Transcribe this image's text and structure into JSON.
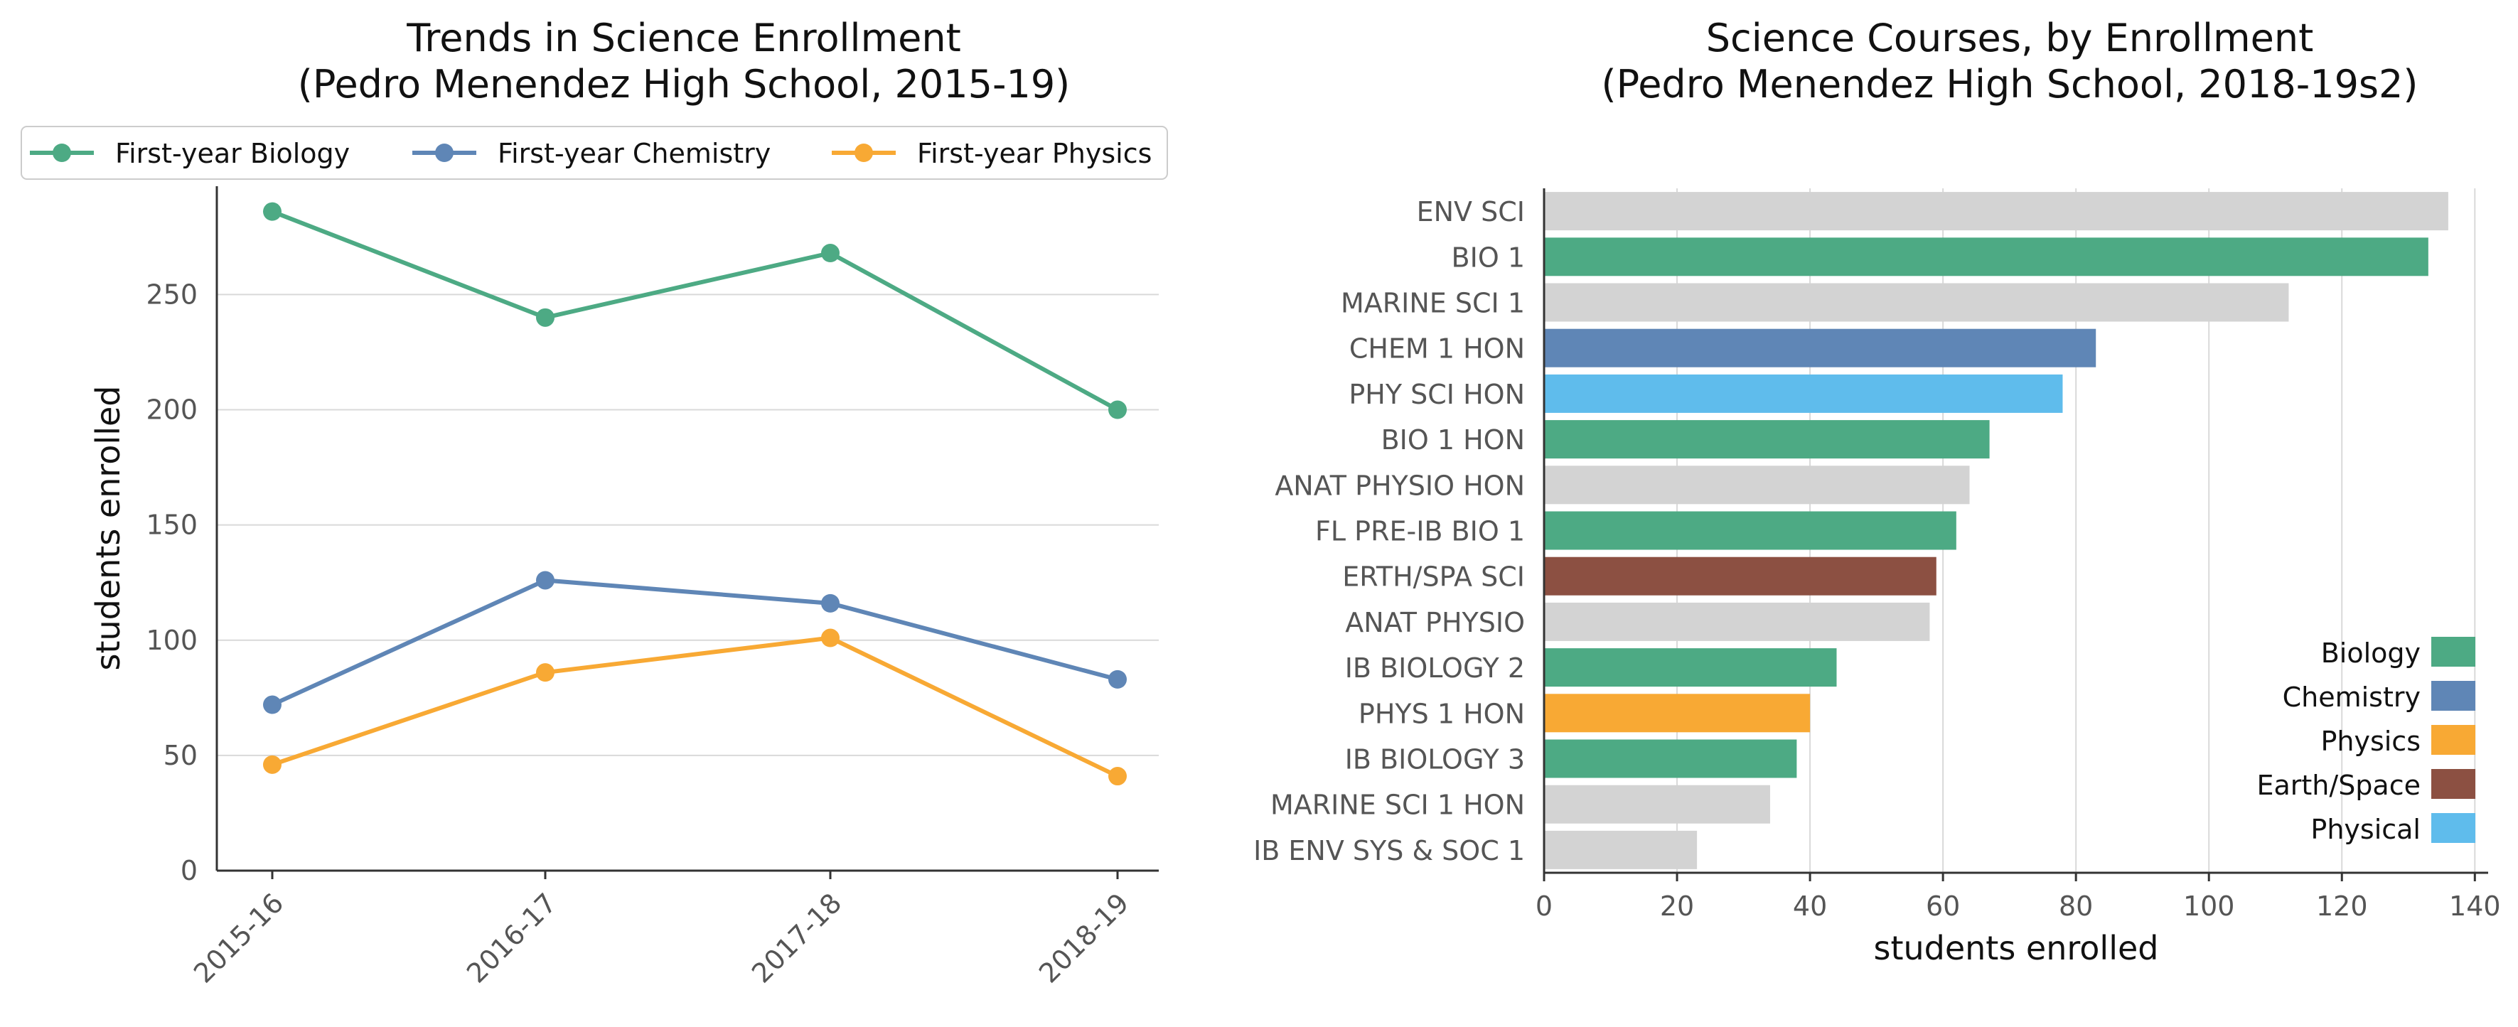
{
  "chart_data": [
    {
      "type": "line",
      "title": "Trends in Science Enrollment\n(Pedro Menendez High School, 2015-19)",
      "xlabel": "",
      "ylabel": "students enrolled",
      "categories": [
        "2015-16",
        "2016-17",
        "2017-18",
        "2018-19"
      ],
      "yticks": [
        0,
        50,
        100,
        150,
        200,
        250
      ],
      "ylim": [
        0,
        297
      ],
      "grid": "horizontal",
      "legend_position": "top",
      "series": [
        {
          "name": "First-year Biology",
          "color": "#4daa84",
          "values": [
            286,
            240,
            268,
            200
          ]
        },
        {
          "name": "First-year Chemistry",
          "color": "#5f86b6",
          "values": [
            72,
            126,
            116,
            83
          ]
        },
        {
          "name": "First-year Physics",
          "color": "#f8a934",
          "values": [
            46,
            86,
            101,
            41
          ]
        }
      ]
    },
    {
      "type": "bar",
      "orientation": "horizontal",
      "title": "Science Courses, by Enrollment\n(Pedro Menendez High School, 2018-19s2)",
      "xlabel": "students enrolled",
      "ylabel": "",
      "xticks": [
        0,
        20,
        40,
        60,
        80,
        100,
        120,
        140
      ],
      "xlim": [
        0,
        142
      ],
      "grid": "vertical",
      "legend_position": "bottom-right",
      "categories": [
        "ENV SCI",
        "BIO 1",
        "MARINE SCI 1",
        "CHEM 1 HON",
        "PHY SCI HON",
        "BIO 1 HON",
        "ANAT PHYSIO HON",
        "FL PRE-IB BIO 1",
        "ERTH/SPA SCI",
        "ANAT PHYSIO",
        "IB BIOLOGY 2",
        "PHYS 1 HON",
        "IB BIOLOGY 3",
        "MARINE SCI 1 HON",
        "IB ENV SYS & SOC 1"
      ],
      "values": [
        136,
        133,
        112,
        83,
        78,
        67,
        64,
        62,
        59,
        58,
        44,
        40,
        38,
        34,
        23
      ],
      "groups": [
        "Other",
        "Biology",
        "Other",
        "Chemistry",
        "Physical",
        "Biology",
        "Other",
        "Biology",
        "Earth/Space",
        "Other",
        "Biology",
        "Physics",
        "Biology",
        "Other",
        "Other"
      ],
      "group_colors": {
        "Biology": "#4daa84",
        "Chemistry": "#5f86b6",
        "Physics": "#f8a934",
        "Earth/Space": "#8c5042",
        "Physical": "#5fbcec",
        "Other": "#d3d3d3"
      },
      "legend": [
        "Biology",
        "Chemistry",
        "Physics",
        "Earth/Space",
        "Physical"
      ]
    }
  ]
}
